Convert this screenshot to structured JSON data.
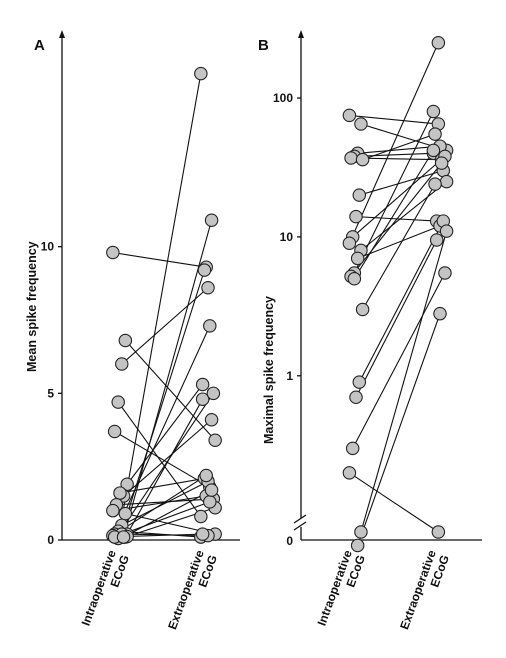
{
  "chart_data": [
    {
      "panel": "A",
      "type": "line",
      "ylabel": "Mean spike frequency",
      "xlabel": "",
      "categories": [
        [
          "Intraoperative",
          "ECoG"
        ],
        [
          "Extraoperative",
          "ECoG"
        ]
      ],
      "scale": "linear",
      "ylim": [
        0,
        16.5
      ],
      "yticks": [
        0,
        5,
        10
      ],
      "grid": false,
      "pairs": [
        [
          9.8,
          9.3
        ],
        [
          6.8,
          3.4
        ],
        [
          6.0,
          8.6
        ],
        [
          4.7,
          0.8
        ],
        [
          3.7,
          1.8
        ],
        [
          1.9,
          5.3
        ],
        [
          1.5,
          4.1
        ],
        [
          1.6,
          2.1
        ],
        [
          1.2,
          1.4
        ],
        [
          1.0,
          1.5
        ],
        [
          0.9,
          0.2
        ],
        [
          0.5,
          2.0
        ],
        [
          0.3,
          0.1
        ],
        [
          0.2,
          7.3
        ],
        [
          0.2,
          4.8
        ],
        [
          0.1,
          10.9
        ],
        [
          0.1,
          9.2
        ],
        [
          0.1,
          5.0
        ],
        [
          0.15,
          2.2
        ],
        [
          0.1,
          1.1
        ],
        [
          0.2,
          0.15
        ],
        [
          0.05,
          15.9
        ],
        [
          0.1,
          1.3
        ],
        [
          0.12,
          0.2
        ],
        [
          0.1,
          1.7
        ]
      ]
    },
    {
      "panel": "B",
      "type": "line",
      "ylabel": "Maximal spike frequency",
      "xlabel": "",
      "categories": [
        [
          "Intraoperative",
          "ECoG"
        ],
        [
          "Extraoperative",
          "ECoG"
        ]
      ],
      "scale": "log",
      "ylim": [
        0.05,
        300
      ],
      "yticks": [
        1,
        10,
        100
      ],
      "ytick_labels": [
        "1",
        "10",
        "100"
      ],
      "zero_label": "0",
      "axis_break": true,
      "grid": false,
      "pairs": [
        [
          75,
          65
        ],
        [
          65,
          42
        ],
        [
          40,
          45
        ],
        [
          38,
          40
        ],
        [
          37,
          36
        ],
        [
          36,
          55
        ],
        [
          20,
          30
        ],
        [
          14,
          13
        ],
        [
          10,
          38
        ],
        [
          9,
          250
        ],
        [
          8,
          25
        ],
        [
          7,
          12
        ],
        [
          5.5,
          80
        ],
        [
          5.2,
          34
        ],
        [
          3.0,
          24
        ],
        [
          0.9,
          13
        ],
        [
          0.7,
          9.5
        ],
        [
          0.3,
          5.5
        ],
        [
          0.2,
          0.075
        ],
        [
          0.075,
          11
        ],
        [
          0.06,
          2.8
        ],
        [
          5.0,
          42
        ]
      ]
    }
  ]
}
